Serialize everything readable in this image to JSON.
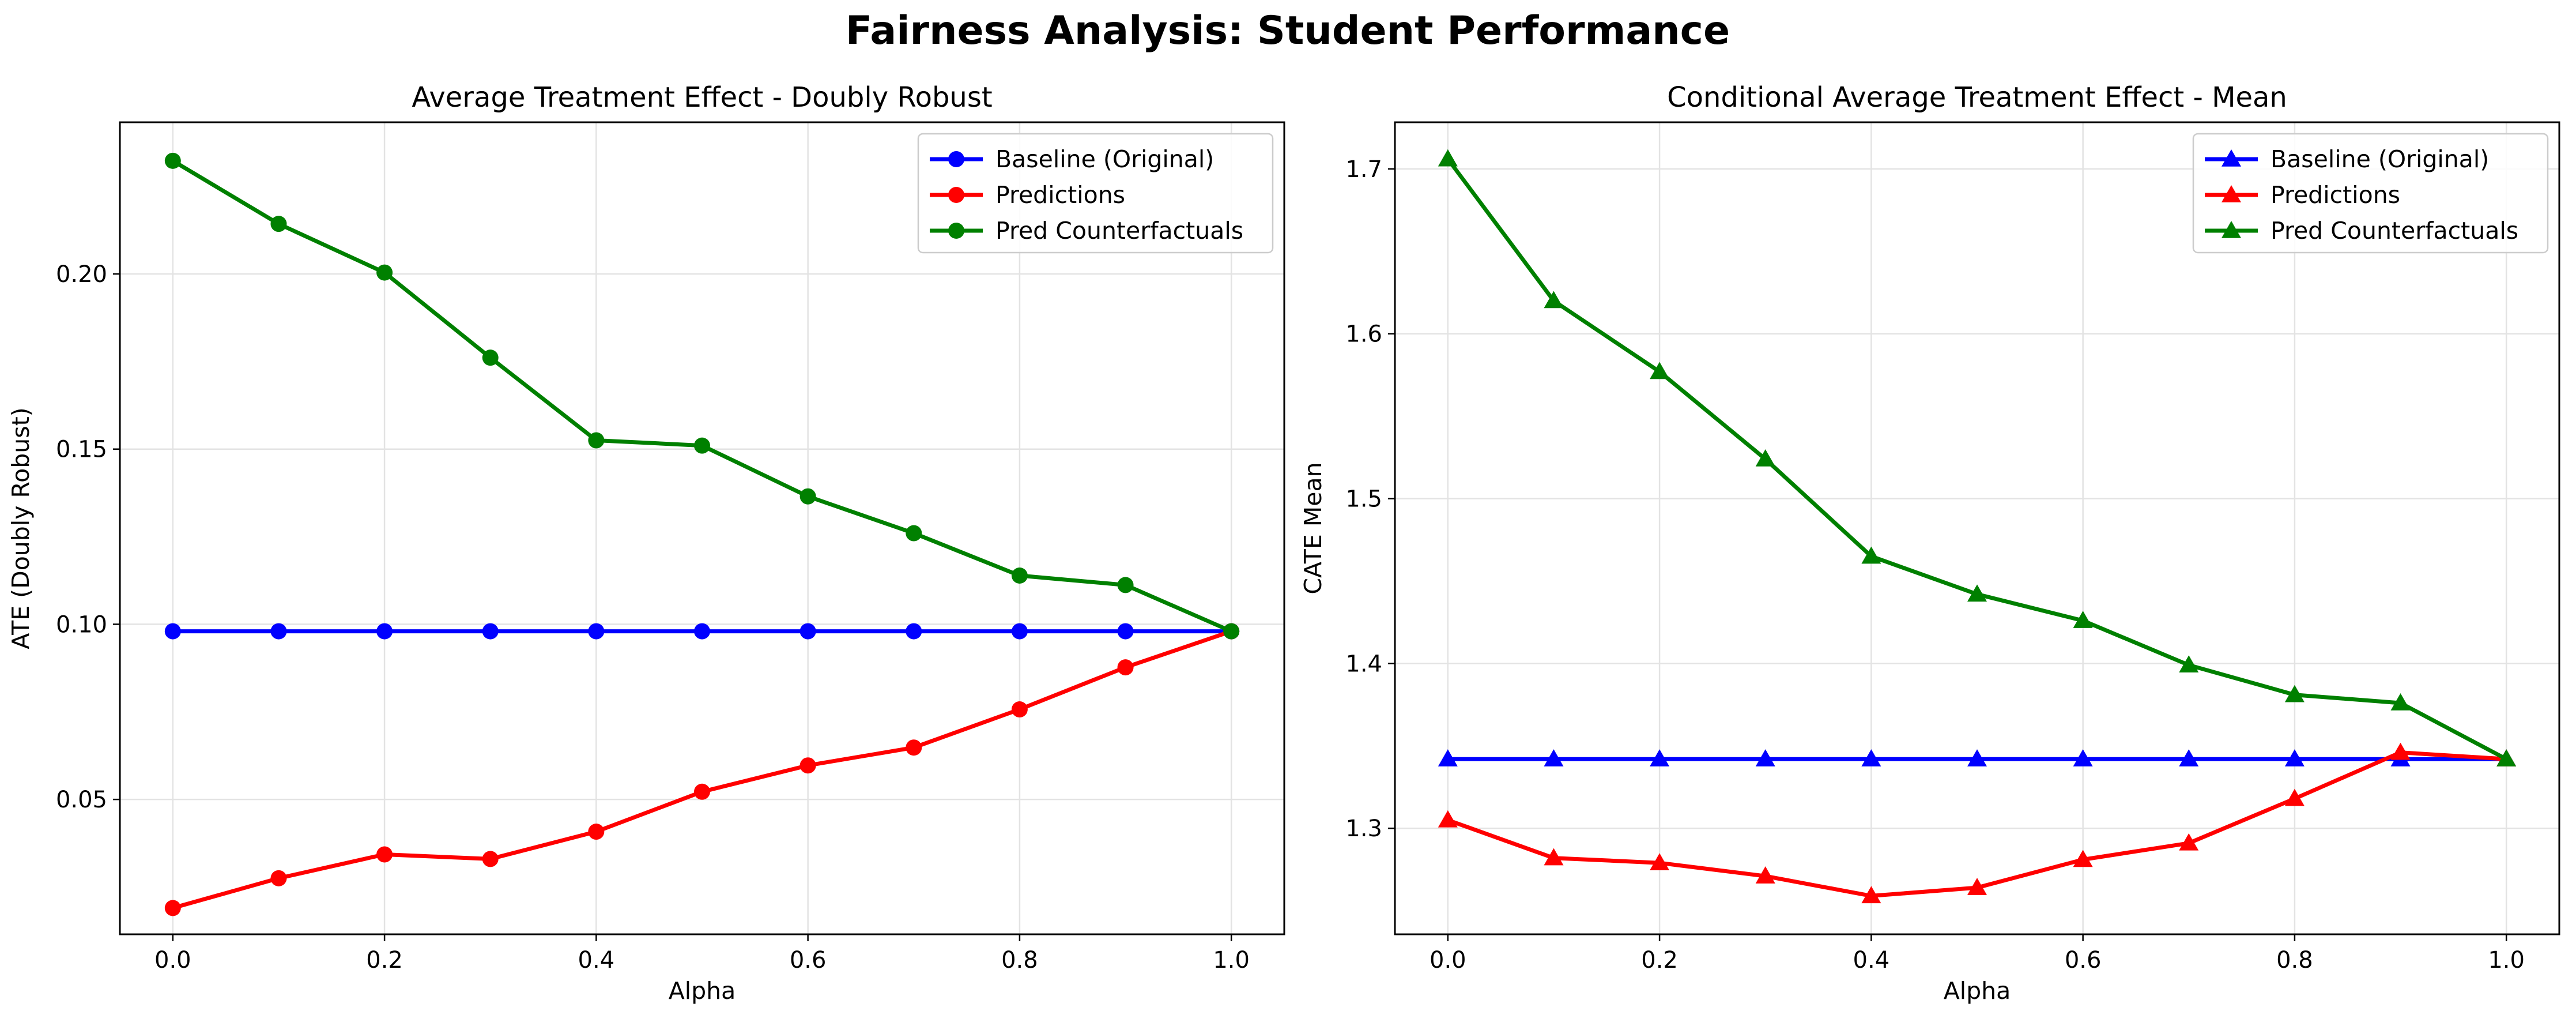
{
  "figure": {
    "suptitle": "Fairness Analysis: Student Performance"
  },
  "chart_data": [
    {
      "type": "line",
      "title": "Average Treatment Effect - Doubly Robust",
      "xlabel": "Alpha",
      "ylabel": "ATE (Doubly Robust)",
      "marker": "circle",
      "x": [
        0.0,
        0.1,
        0.2,
        0.3,
        0.4,
        0.5,
        0.6,
        0.7,
        0.8,
        0.9,
        1.0
      ],
      "xlim": [
        -0.05,
        1.05
      ],
      "ylim": [
        0.0115,
        0.2433
      ],
      "xticks": [
        0.0,
        0.2,
        0.4,
        0.6,
        0.8,
        1.0
      ],
      "xtick_labels": [
        "0.0",
        "0.2",
        "0.4",
        "0.6",
        "0.8",
        "1.0"
      ],
      "yticks": [
        0.05,
        0.1,
        0.15,
        0.2
      ],
      "ytick_labels": [
        "0.05",
        "0.10",
        "0.15",
        "0.20"
      ],
      "grid": true,
      "legend_position": "upper-right",
      "series": [
        {
          "name": "Baseline (Original)",
          "color": "#0000ff",
          "values": [
            0.098,
            0.098,
            0.098,
            0.098,
            0.098,
            0.098,
            0.098,
            0.098,
            0.098,
            0.098,
            0.098
          ]
        },
        {
          "name": "Predictions",
          "color": "#ff0000",
          "values": [
            0.019,
            0.0275,
            0.0343,
            0.033,
            0.0408,
            0.0522,
            0.0597,
            0.0648,
            0.0757,
            0.0877,
            0.098
          ]
        },
        {
          "name": "Pred Counterfactuals",
          "color": "#008000",
          "values": [
            0.2323,
            0.2143,
            0.2004,
            0.1761,
            0.1525,
            0.151,
            0.1365,
            0.126,
            0.1139,
            0.1112,
            0.098
          ]
        }
      ]
    },
    {
      "type": "line",
      "title": "Conditional Average Treatment Effect - Mean",
      "xlabel": "Alpha",
      "ylabel": "CATE Mean",
      "marker": "triangle",
      "x": [
        0.0,
        0.1,
        0.2,
        0.3,
        0.4,
        0.5,
        0.6,
        0.7,
        0.8,
        0.9,
        1.0
      ],
      "xlim": [
        -0.05,
        1.05
      ],
      "ylim": [
        1.2357,
        1.7283
      ],
      "xticks": [
        0.0,
        0.2,
        0.4,
        0.6,
        0.8,
        1.0
      ],
      "xtick_labels": [
        "0.0",
        "0.2",
        "0.4",
        "0.6",
        "0.8",
        "1.0"
      ],
      "yticks": [
        1.3,
        1.4,
        1.5,
        1.6,
        1.7
      ],
      "ytick_labels": [
        "1.3",
        "1.4",
        "1.5",
        "1.6",
        "1.7"
      ],
      "grid": true,
      "legend_position": "upper-right",
      "series": [
        {
          "name": "Baseline (Original)",
          "color": "#0000ff",
          "values": [
            1.342,
            1.342,
            1.342,
            1.342,
            1.342,
            1.342,
            1.342,
            1.342,
            1.342,
            1.342,
            1.342
          ]
        },
        {
          "name": "Predictions",
          "color": "#ff0000",
          "values": [
            1.305,
            1.282,
            1.279,
            1.271,
            1.259,
            1.264,
            1.281,
            1.291,
            1.318,
            1.346,
            1.342
          ]
        },
        {
          "name": "Pred Counterfactuals",
          "color": "#008000",
          "values": [
            1.706,
            1.62,
            1.577,
            1.524,
            1.465,
            1.442,
            1.426,
            1.399,
            1.381,
            1.376,
            1.342
          ]
        }
      ]
    }
  ]
}
